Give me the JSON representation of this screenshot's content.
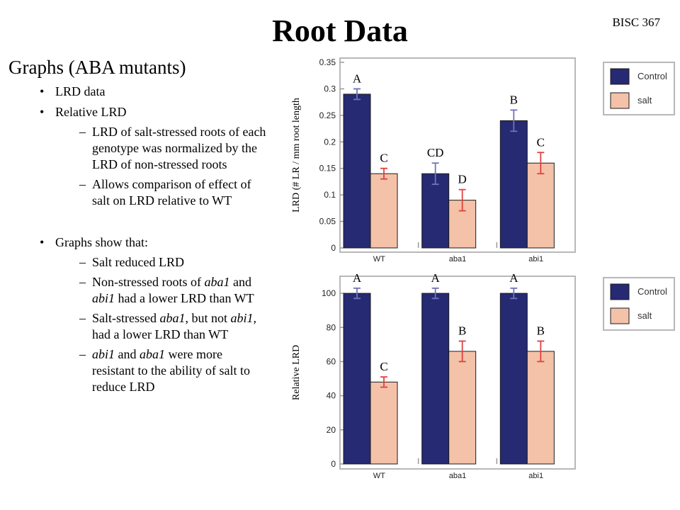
{
  "slide": {
    "title": "Root Data",
    "course": "BISC 367",
    "heading": "Graphs (ABA mutants)",
    "bullets": [
      {
        "text": "LRD data",
        "level": 1
      },
      {
        "text": "Relative LRD",
        "level": 1
      },
      {
        "text": "LRD of salt-stressed roots of each genotype was normalized by the LRD of non-stressed roots",
        "level": 2
      },
      {
        "text": "Allows comparison of effect of salt on LRD relative to WT",
        "level": 2
      },
      {
        "text": "",
        "level": 0
      },
      {
        "text": "Graphs show that:",
        "level": 1
      },
      {
        "text": "Salt reduced LRD",
        "level": 2
      },
      {
        "html": "Non-stressed roots of <i>aba1</i> and <i>abi1</i> had a lower LRD than WT",
        "level": 2
      },
      {
        "html": "Salt-stressed <i>aba1</i>, but not <i>abi1,</i> had a lower LRD than WT",
        "level": 2
      },
      {
        "html": "<i>abi1</i> and <i>aba1</i> were more resistant to the ability of salt to reduce LRD",
        "level": 2
      }
    ]
  },
  "colors": {
    "control": "#262a72",
    "salt": "#f3c2a8",
    "error_control": "#6f74b8",
    "error_salt": "#e0413f"
  },
  "chart_data": [
    {
      "type": "bar",
      "categories": [
        "WT",
        "aba1",
        "abi1"
      ],
      "series": [
        {
          "name": "Control",
          "values": [
            0.29,
            0.14,
            0.24
          ],
          "errors": [
            0.01,
            0.02,
            0.02
          ],
          "letters": [
            "A",
            "CD",
            "B"
          ]
        },
        {
          "name": "salt",
          "values": [
            0.14,
            0.09,
            0.16
          ],
          "errors": [
            0.01,
            0.02,
            0.02
          ],
          "letters": [
            "C",
            "D",
            "C"
          ]
        }
      ],
      "ylabel": "LRD (# LR / mm root length",
      "ylim": [
        0,
        0.35
      ],
      "yticks": [
        "0",
        "0.05",
        "0.1",
        "0.15",
        "0.2",
        "0.25",
        "0.3",
        "0.35"
      ],
      "legend": [
        "Control",
        "salt"
      ],
      "legend_position": "right"
    },
    {
      "type": "bar",
      "categories": [
        "WT",
        "aba1",
        "abi1"
      ],
      "series": [
        {
          "name": "Control",
          "values": [
            100,
            100,
            100
          ],
          "errors": [
            3,
            3,
            3
          ],
          "letters": [
            "A",
            "A",
            "A"
          ]
        },
        {
          "name": "salt",
          "values": [
            48,
            66,
            66
          ],
          "errors": [
            3,
            6,
            6
          ],
          "letters": [
            "C",
            "B",
            "B"
          ]
        }
      ],
      "ylabel": "Relative LRD",
      "ylim": [
        0,
        110
      ],
      "yticks": [
        "0",
        "20",
        "40",
        "60",
        "80",
        "100"
      ],
      "legend": [
        "Control",
        "salt"
      ],
      "legend_position": "right"
    }
  ]
}
